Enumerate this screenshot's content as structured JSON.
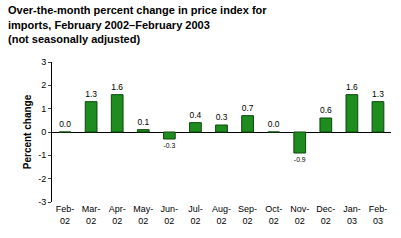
{
  "chart_data": {
    "type": "bar",
    "title": "Over-the-month percent change in price index for\nimports, February 2002–February 2003\n(not seasonally adjusted)",
    "y_label": "Percent change",
    "categories": [
      "Feb-02",
      "Mar-02",
      "Apr-02",
      "May-02",
      "Jun-02",
      "Jul-02",
      "Aug-02",
      "Sep-02",
      "Oct-02",
      "Nov-02",
      "Dec-02",
      "Jan-03",
      "Feb-03"
    ],
    "values": [
      0.0,
      1.3,
      1.6,
      0.1,
      -0.3,
      0.4,
      0.3,
      0.7,
      0.0,
      -0.9,
      0.6,
      1.6,
      1.3
    ],
    "value_labels": [
      "0.0",
      "1.3",
      "1.6",
      "0.1",
      "-0.3",
      "0.4",
      "0.3",
      "0.7",
      "0.0",
      "-0.9",
      "0.6",
      "1.6",
      "1.3"
    ],
    "data_labels": true,
    "color": "#1e8c1e",
    "ylim": [
      -3,
      3
    ],
    "yticks": [
      -3,
      -2,
      -1,
      0,
      1,
      2,
      3
    ],
    "grid": false
  }
}
